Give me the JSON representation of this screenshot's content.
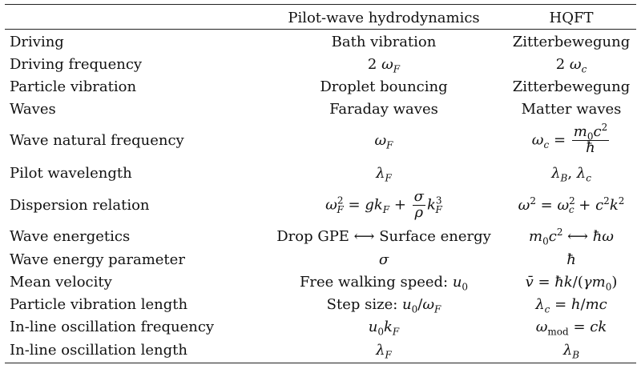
{
  "table": {
    "header": [
      "",
      "Pilot-wave hydrodynamics",
      "HQFT"
    ],
    "rows": [
      {
        "label": "Driving",
        "pwh": "Bath vibration",
        "hqft": "Zitterbewegung"
      },
      {
        "label": "Driving frequency",
        "pwh": "2 ω_F",
        "hqft": "2 ω_c"
      },
      {
        "label": "Particle vibration",
        "pwh": "Droplet bouncing",
        "hqft": "Zitterbewegung"
      },
      {
        "label": "Waves",
        "pwh": "Faraday waves",
        "hqft": "Matter waves"
      },
      {
        "label": "Wave natural frequency",
        "pwh": "ω_F",
        "hqft": "ω_c = m_0 c^2 / ħ"
      },
      {
        "label": "Pilot wavelength",
        "pwh": "λ_F",
        "hqft": "λ_B, λ_c"
      },
      {
        "label": "Dispersion relation",
        "pwh": "ω_F^2 = g k_F + (σ/ρ) k_F^3",
        "hqft": "ω^2 = ω_c^2 + c^2 k^2"
      },
      {
        "label": "Wave energetics",
        "pwh": "Drop GPE ⟷ Surface energy",
        "hqft": "m_0 c^2 ⟷ ħω"
      },
      {
        "label": "Wave energy parameter",
        "pwh": "σ",
        "hqft": "ħ"
      },
      {
        "label": "Mean velocity",
        "pwh": "Free walking speed: u_0",
        "hqft": "v̄ = ħk/(γ m_0)"
      },
      {
        "label": "Particle vibration length",
        "pwh": "Step size: u_0/ω_F",
        "hqft": "λ_c = h/mc"
      },
      {
        "label": "In-line oscillation frequency",
        "pwh": "u_0 k_F",
        "hqft": "ω_mod = ck"
      },
      {
        "label": "In-line oscillation length",
        "pwh": "λ_F",
        "hqft": "λ_B"
      }
    ]
  }
}
